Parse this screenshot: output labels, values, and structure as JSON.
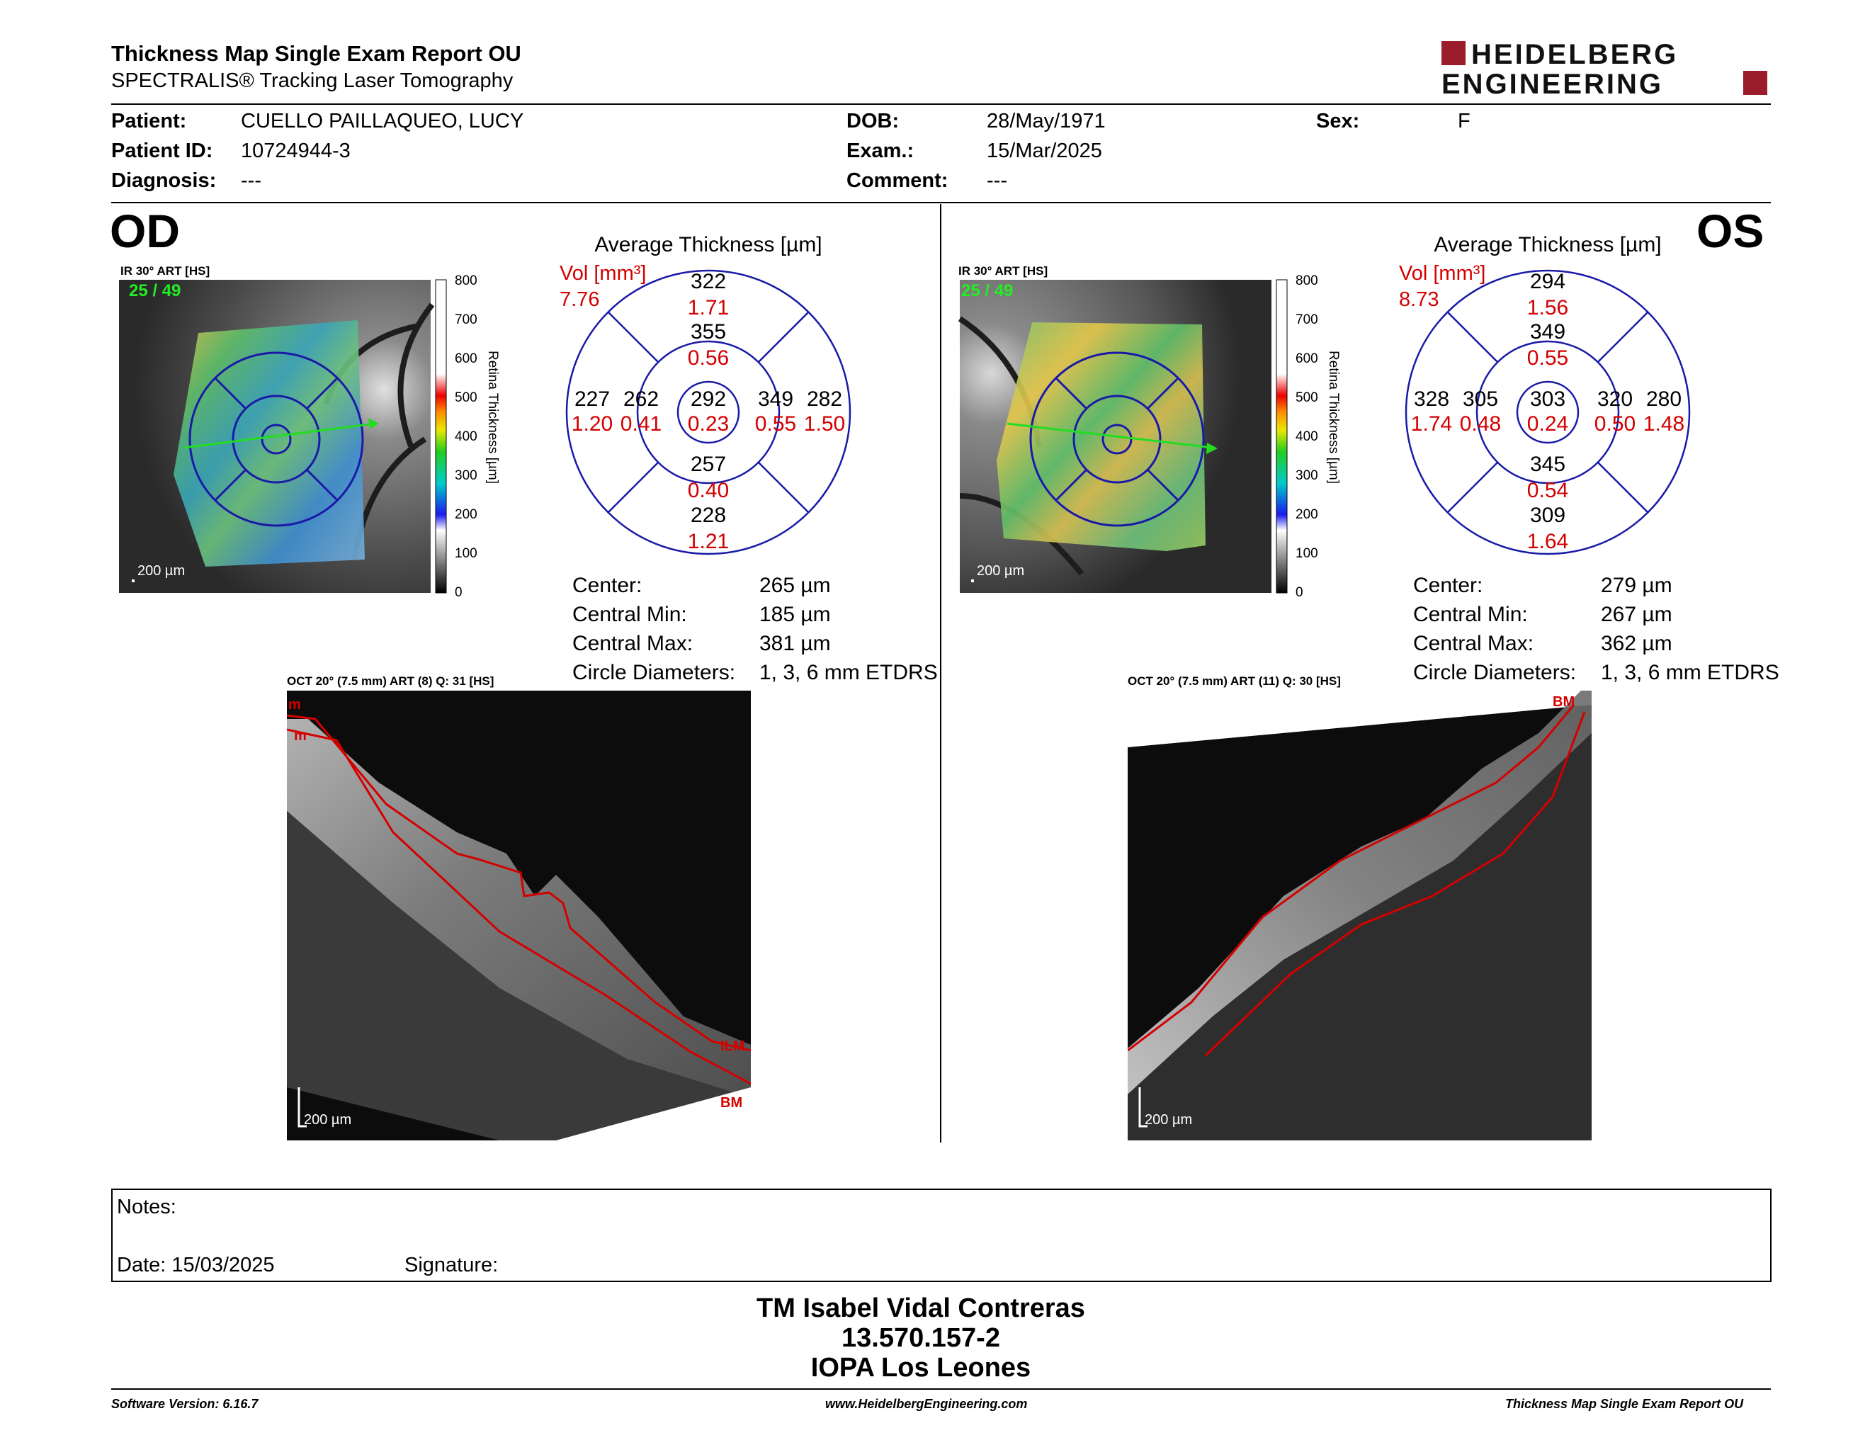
{
  "header": {
    "title": "Thickness Map Single Exam Report OU",
    "subtitle": "SPECTRALIS® Tracking Laser Tomography",
    "logo_line1": "HEIDELBERG",
    "logo_line2": "ENGINEERING"
  },
  "patient": {
    "patient_label": "Patient:",
    "patient_value": "CUELLO PAILLAQUEO, LUCY",
    "id_label": "Patient ID:",
    "id_value": "10724944-3",
    "diagnosis_label": "Diagnosis:",
    "diagnosis_value": "---",
    "dob_label": "DOB:",
    "dob_value": "28/May/1971",
    "exam_label": "Exam.:",
    "exam_value": "15/Mar/2025",
    "comment_label": "Comment:",
    "comment_value": "---",
    "sex_label": "Sex:",
    "sex_value": "F"
  },
  "od": {
    "eye_label": "OD",
    "ir_label": "IR 30° ART [HS]",
    "frame_counter": "25 / 49",
    "scale_label": "200 µm",
    "colorbar_title": "Retina Thickness [µm]",
    "colorbar_ticks": [
      "800",
      "700",
      "600",
      "500",
      "400",
      "300",
      "200",
      "100",
      "0"
    ],
    "avg_title": "Average Thickness [µm]",
    "vol_label": "Vol [mm³]",
    "vol_value": "7.76",
    "sectors": {
      "outer_top": [
        "322",
        "1.71"
      ],
      "inner_top": [
        "355",
        "0.56"
      ],
      "outer_left": [
        "227",
        "1.20"
      ],
      "inner_left": [
        "262",
        "0.41"
      ],
      "center": [
        "292",
        "0.23"
      ],
      "inner_right": [
        "349",
        "0.55"
      ],
      "outer_right": [
        "282",
        "1.50"
      ],
      "inner_bottom": [
        "257",
        "0.40"
      ],
      "outer_bottom": [
        "228",
        "1.21"
      ]
    },
    "stats": [
      {
        "label": "Center:",
        "value": "265 µm"
      },
      {
        "label": "Central Min:",
        "value": "185 µm"
      },
      {
        "label": "Central Max:",
        "value": "381 µm"
      },
      {
        "label": "Circle Diameters:",
        "value": "1, 3, 6 mm ETDRS"
      }
    ],
    "oct_label": "OCT 20° (7.5 mm) ART (8) Q: 31 [HS]",
    "oct_scale": "200 µm",
    "oct_marks": [
      "m",
      "m",
      "ILM",
      "BM"
    ]
  },
  "os": {
    "eye_label": "OS",
    "ir_label": "IR 30° ART [HS]",
    "frame_counter": "25 / 49",
    "scale_label": "200 µm",
    "colorbar_title": "Retina Thickness [µm]",
    "colorbar_ticks": [
      "800",
      "700",
      "600",
      "500",
      "400",
      "300",
      "200",
      "100",
      "0"
    ],
    "avg_title": "Average Thickness [µm]",
    "vol_label": "Vol [mm³]",
    "vol_value": "8.73",
    "sectors": {
      "outer_top": [
        "294",
        "1.56"
      ],
      "inner_top": [
        "349",
        "0.55"
      ],
      "outer_left": [
        "328",
        "1.74"
      ],
      "inner_left": [
        "305",
        "0.48"
      ],
      "center": [
        "303",
        "0.24"
      ],
      "inner_right": [
        "320",
        "0.50"
      ],
      "outer_right": [
        "280",
        "1.48"
      ],
      "inner_bottom": [
        "345",
        "0.54"
      ],
      "outer_bottom": [
        "309",
        "1.64"
      ]
    },
    "stats": [
      {
        "label": "Center:",
        "value": "279 µm"
      },
      {
        "label": "Central Min:",
        "value": "267 µm"
      },
      {
        "label": "Central Max:",
        "value": "362 µm"
      },
      {
        "label": "Circle Diameters:",
        "value": "1, 3, 6 mm ETDRS"
      }
    ],
    "oct_label": "OCT 20° (7.5 mm) ART (11) Q: 30 [HS]",
    "oct_scale": "200 µm",
    "oct_marks": [
      "BM"
    ]
  },
  "notes": {
    "notes_label": "Notes:",
    "date_label": "Date: 15/03/2025",
    "signature_label": "Signature:"
  },
  "signature": {
    "name": "TM Isabel Vidal Contreras",
    "id": "13.570.157-2",
    "org": "IOPA Los Leones"
  },
  "footer": {
    "software": "Software Version: 6.16.7",
    "website": "www.HeidelbergEngineering.com",
    "report": "Thickness Map Single Exam Report OU"
  },
  "colors": {
    "red_text": "#d40000",
    "grid_blue": "#1a1aa8",
    "logo_red": "#9b1c2b",
    "counter_green": "#22ee22"
  }
}
